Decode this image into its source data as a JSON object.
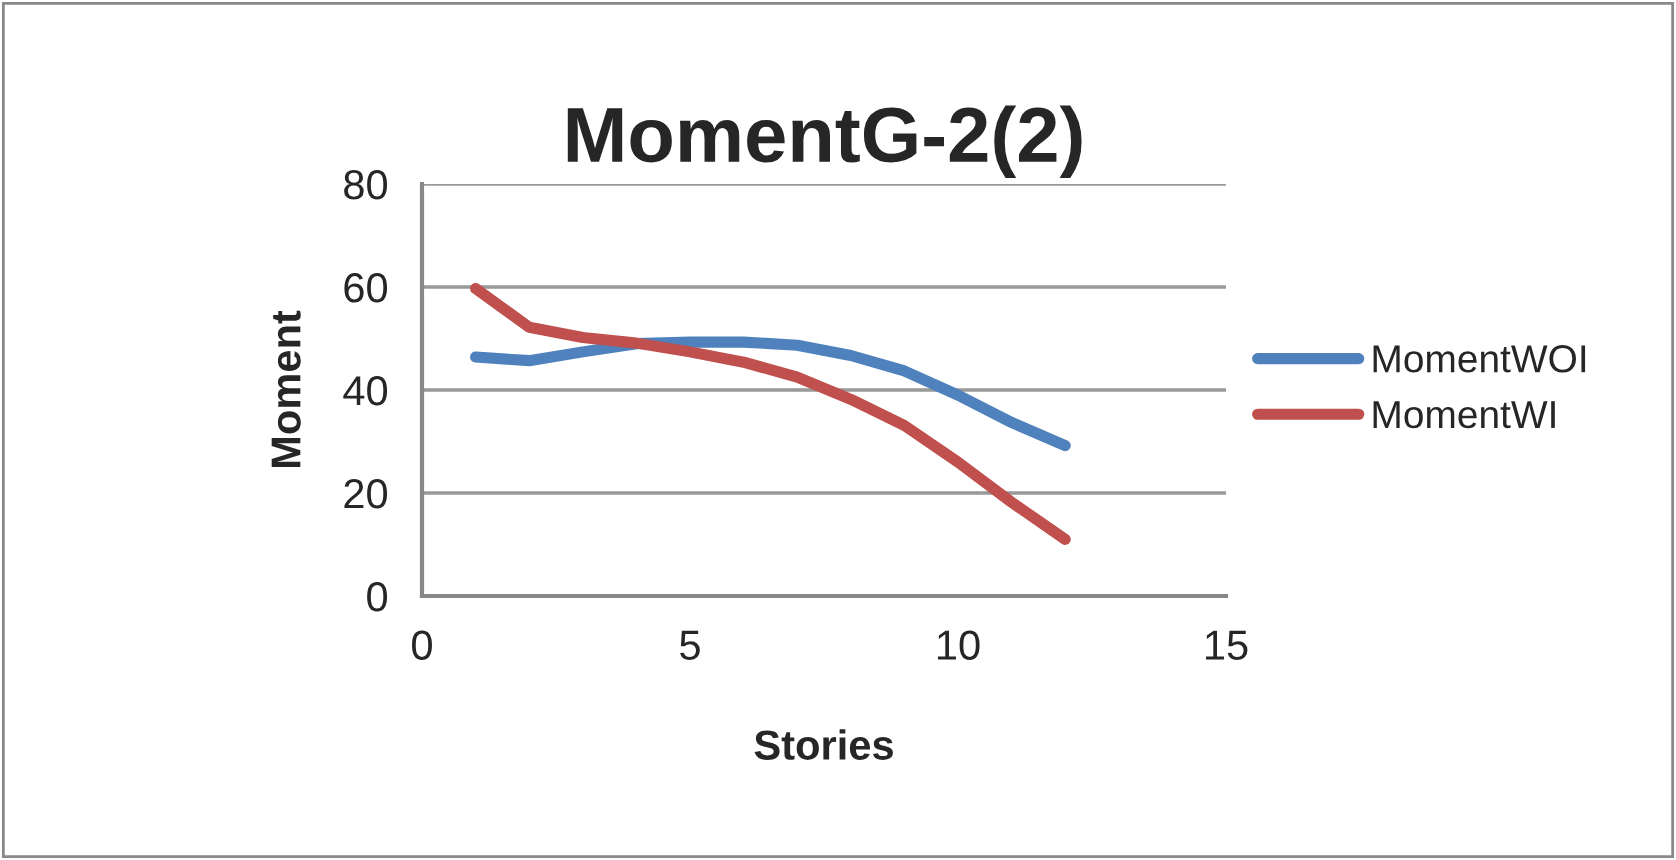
{
  "chart_data": {
    "type": "line",
    "title": "MomentG-2(2)",
    "xlabel": "Stories",
    "ylabel": "Moment",
    "x": [
      1,
      2,
      3,
      4,
      5,
      6,
      7,
      8,
      9,
      10,
      11,
      12
    ],
    "series": [
      {
        "name": "MomentWOI",
        "color": "#4f81bd",
        "values": [
          46.4,
          45.7,
          47.4,
          49,
          49.3,
          49.3,
          48.7,
          46.7,
          43.7,
          39,
          33.7,
          29.2
        ]
      },
      {
        "name": "MomentWI",
        "color": "#c0504d",
        "values": [
          59.7,
          52.2,
          50.2,
          49.1,
          47.4,
          45.4,
          42.5,
          38.2,
          33.1,
          26,
          18.2,
          11
        ]
      }
    ],
    "xlim": [
      0,
      15
    ],
    "xticks": [
      0,
      5,
      10,
      15
    ],
    "ylim": [
      0,
      80
    ],
    "yticks": [
      0,
      20,
      40,
      60,
      80
    ],
    "grid": "y",
    "legend": "right",
    "marker": "none",
    "line_style": "solid"
  }
}
